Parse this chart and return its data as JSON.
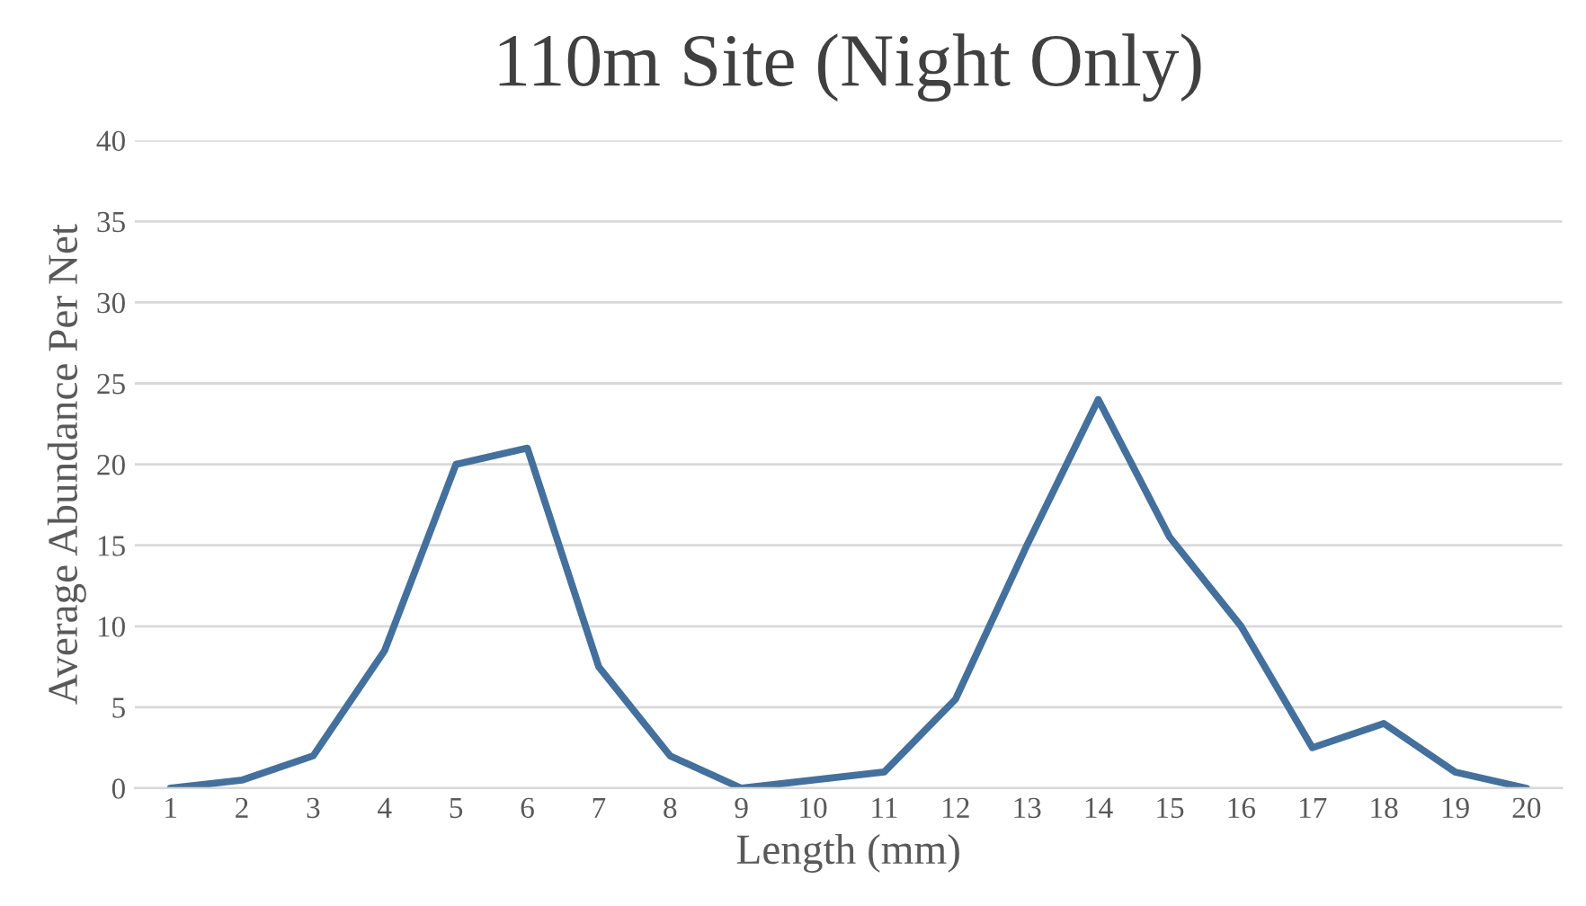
{
  "chart_data": {
    "type": "line",
    "title": "110m Site (Night Only)",
    "xlabel": "Length (mm)",
    "ylabel": "Average Abundance Per Net",
    "categories": [
      "1",
      "2",
      "3",
      "4",
      "5",
      "6",
      "7",
      "8",
      "9",
      "10",
      "11",
      "12",
      "13",
      "14",
      "15",
      "16",
      "17",
      "18",
      "19",
      "20"
    ],
    "series": [
      {
        "color": "#44709d",
        "values": [
          0,
          0.5,
          2,
          8.5,
          20,
          21,
          7.5,
          2,
          0,
          0.5,
          1,
          5.5,
          15,
          24,
          15.5,
          10,
          2.5,
          4,
          1,
          0
        ]
      }
    ],
    "ylim": [
      0,
      40
    ],
    "yticks": [
      0,
      5,
      10,
      15,
      20,
      25,
      30,
      35,
      40
    ],
    "grid": "y",
    "marker": "none",
    "line_style": "solid"
  }
}
